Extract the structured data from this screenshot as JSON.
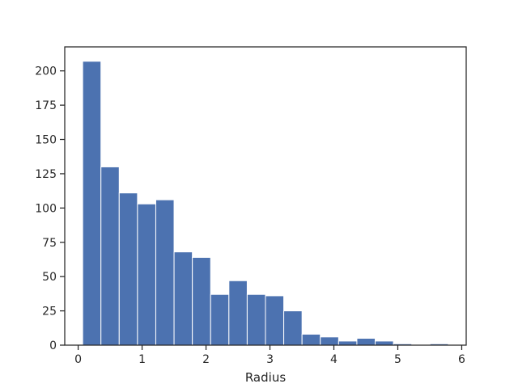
{
  "chart_data": {
    "type": "bar",
    "title": "",
    "xlabel": "Radius",
    "ylabel": "",
    "xlim": [
      -0.21,
      6.07
    ],
    "ylim": [
      0,
      217.5
    ],
    "bin_edges": [
      0.07,
      0.356,
      0.642,
      0.928,
      1.214,
      1.5,
      1.786,
      2.072,
      2.358,
      2.644,
      2.93,
      3.216,
      3.502,
      3.788,
      4.074,
      4.36,
      4.646,
      4.932,
      5.218,
      5.504,
      5.79
    ],
    "values": [
      207,
      130,
      111,
      103,
      106,
      68,
      64,
      37,
      47,
      37,
      36,
      25,
      8,
      6,
      3,
      5,
      3,
      1,
      0,
      1
    ],
    "xticks": [
      0,
      1,
      2,
      3,
      4,
      5,
      6
    ],
    "yticks": [
      0,
      25,
      50,
      75,
      100,
      125,
      150,
      175,
      200
    ],
    "grid": false,
    "legend": "none",
    "colors": {
      "bar": "#4c72b0",
      "bar_edge": "#ffffff",
      "axis": "#262626"
    }
  }
}
